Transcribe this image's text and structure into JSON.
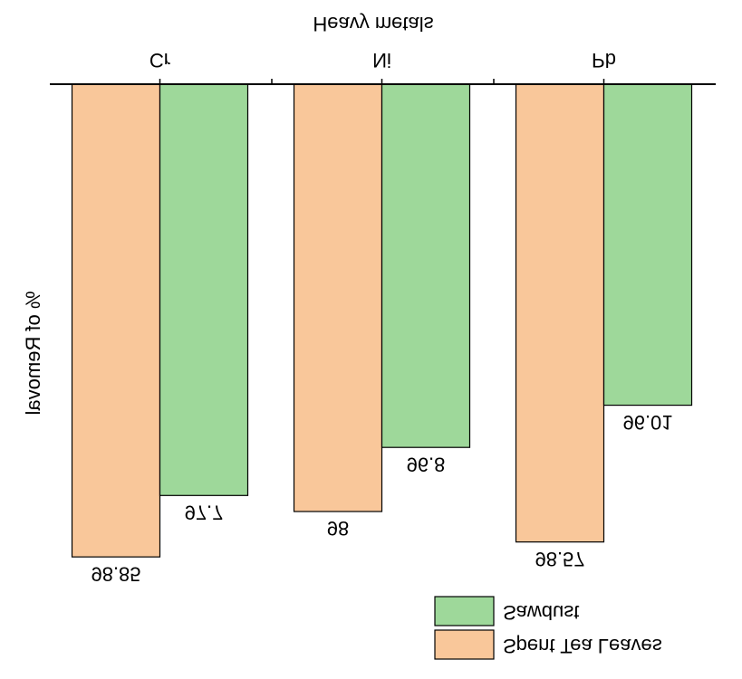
{
  "chart_data": {
    "type": "bar",
    "x_label": "Heavy metals",
    "y_label": "% of Removal",
    "categories": [
      "Cr",
      "Ni",
      "Pb"
    ],
    "series": [
      {
        "name": "Spent Tea Leaves",
        "color": "#f9c79a",
        "values": [
          98.85,
          98,
          98.57
        ]
      },
      {
        "name": "Sawdust",
        "color": "#9ed89a",
        "values": [
          97.7,
          96.8,
          96.01
        ]
      }
    ],
    "ylim": [
      90,
      100
    ]
  }
}
